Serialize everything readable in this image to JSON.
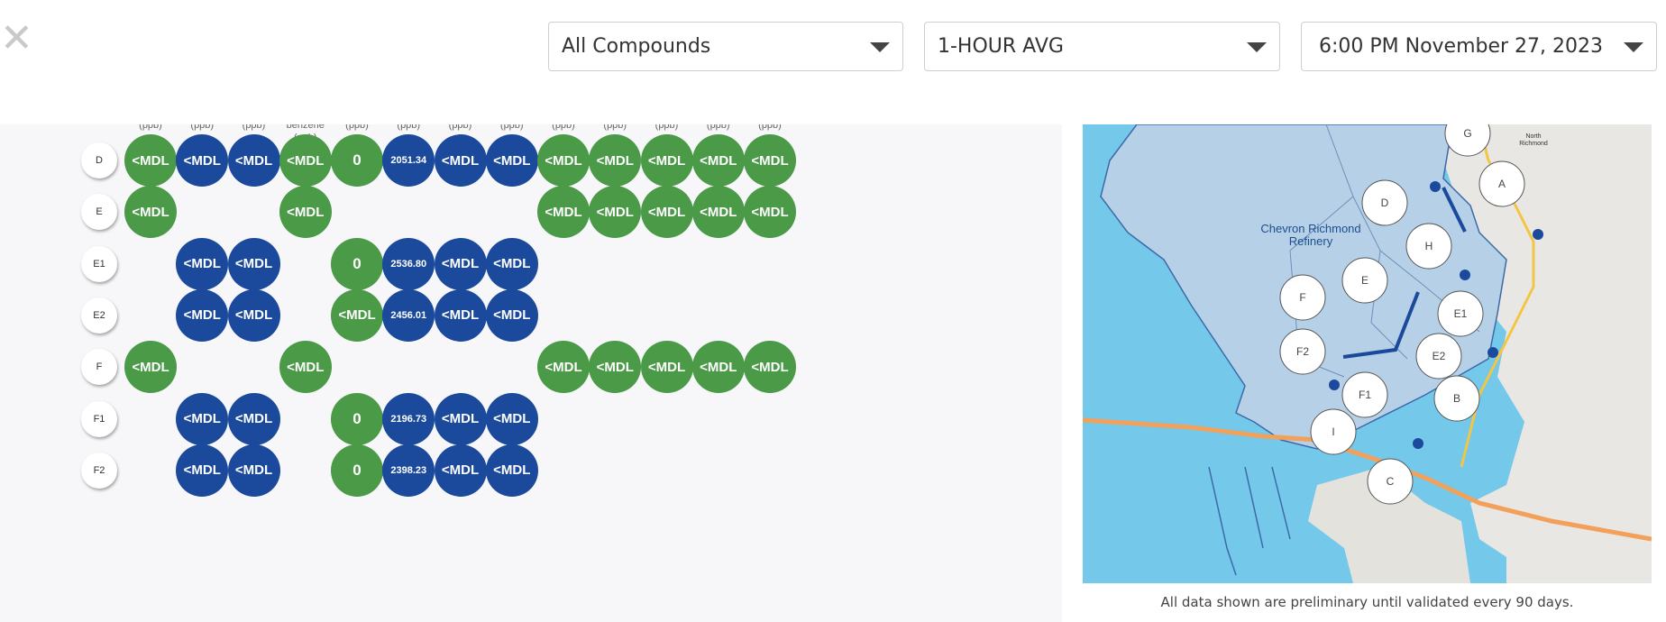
{
  "close_glyph": "✕",
  "filters": {
    "compounds": "All Compounds",
    "averaging": "1-HOUR AVG",
    "datetime": "6:00 PM November 27, 2023"
  },
  "table": {
    "column_headers": [
      "(ppb)",
      "(ppb)",
      "(ppb)",
      "benzene\n(ppb)",
      "(ppb)",
      "(ppb)",
      "(ppb)",
      "(ppb)",
      "(ppb)",
      "(ppb)",
      "(ppb)",
      "(ppb)",
      "(ppb)"
    ],
    "rows": [
      {
        "label": "D",
        "cells": [
          {
            "col": 0,
            "value": "<MDL",
            "color": "green"
          },
          {
            "col": 1,
            "value": "<MDL",
            "color": "blue"
          },
          {
            "col": 2,
            "value": "<MDL",
            "color": "blue"
          },
          {
            "col": 3,
            "value": "<MDL",
            "color": "green"
          },
          {
            "col": 4,
            "value": "0",
            "color": "green"
          },
          {
            "col": 5,
            "value": "2051.34",
            "color": "blue"
          },
          {
            "col": 6,
            "value": "<MDL",
            "color": "blue"
          },
          {
            "col": 7,
            "value": "<MDL",
            "color": "blue"
          },
          {
            "col": 8,
            "value": "<MDL",
            "color": "green"
          },
          {
            "col": 9,
            "value": "<MDL",
            "color": "green"
          },
          {
            "col": 10,
            "value": "<MDL",
            "color": "green"
          },
          {
            "col": 11,
            "value": "<MDL",
            "color": "green"
          },
          {
            "col": 12,
            "value": "<MDL",
            "color": "green"
          }
        ]
      },
      {
        "label": "E",
        "cells": [
          {
            "col": 0,
            "value": "<MDL",
            "color": "green"
          },
          {
            "col": 3,
            "value": "<MDL",
            "color": "green"
          },
          {
            "col": 8,
            "value": "<MDL",
            "color": "green"
          },
          {
            "col": 9,
            "value": "<MDL",
            "color": "green"
          },
          {
            "col": 10,
            "value": "<MDL",
            "color": "green"
          },
          {
            "col": 11,
            "value": "<MDL",
            "color": "green"
          },
          {
            "col": 12,
            "value": "<MDL",
            "color": "green"
          }
        ]
      },
      {
        "label": "E1",
        "cells": [
          {
            "col": 1,
            "value": "<MDL",
            "color": "blue"
          },
          {
            "col": 2,
            "value": "<MDL",
            "color": "blue"
          },
          {
            "col": 4,
            "value": "0",
            "color": "green"
          },
          {
            "col": 5,
            "value": "2536.80",
            "color": "blue"
          },
          {
            "col": 6,
            "value": "<MDL",
            "color": "blue"
          },
          {
            "col": 7,
            "value": "<MDL",
            "color": "blue"
          }
        ]
      },
      {
        "label": "E2",
        "cells": [
          {
            "col": 1,
            "value": "<MDL",
            "color": "blue"
          },
          {
            "col": 2,
            "value": "<MDL",
            "color": "blue"
          },
          {
            "col": 4,
            "value": "<MDL",
            "color": "green"
          },
          {
            "col": 5,
            "value": "2456.01",
            "color": "blue"
          },
          {
            "col": 6,
            "value": "<MDL",
            "color": "blue"
          },
          {
            "col": 7,
            "value": "<MDL",
            "color": "blue"
          }
        ]
      },
      {
        "label": "F",
        "cells": [
          {
            "col": 0,
            "value": "<MDL",
            "color": "green"
          },
          {
            "col": 3,
            "value": "<MDL",
            "color": "green"
          },
          {
            "col": 8,
            "value": "<MDL",
            "color": "green"
          },
          {
            "col": 9,
            "value": "<MDL",
            "color": "green"
          },
          {
            "col": 10,
            "value": "<MDL",
            "color": "green"
          },
          {
            "col": 11,
            "value": "<MDL",
            "color": "green"
          },
          {
            "col": 12,
            "value": "<MDL",
            "color": "green"
          }
        ]
      },
      {
        "label": "F1",
        "cells": [
          {
            "col": 1,
            "value": "<MDL",
            "color": "blue"
          },
          {
            "col": 2,
            "value": "<MDL",
            "color": "blue"
          },
          {
            "col": 4,
            "value": "0",
            "color": "green"
          },
          {
            "col": 5,
            "value": "2196.73",
            "color": "blue"
          },
          {
            "col": 6,
            "value": "<MDL",
            "color": "blue"
          },
          {
            "col": 7,
            "value": "<MDL",
            "color": "blue"
          }
        ]
      },
      {
        "label": "F2",
        "cells": [
          {
            "col": 1,
            "value": "<MDL",
            "color": "blue"
          },
          {
            "col": 2,
            "value": "<MDL",
            "color": "blue"
          },
          {
            "col": 4,
            "value": "0",
            "color": "green"
          },
          {
            "col": 5,
            "value": "2398.23",
            "color": "blue"
          },
          {
            "col": 6,
            "value": "<MDL",
            "color": "blue"
          },
          {
            "col": 7,
            "value": "<MDL",
            "color": "blue"
          }
        ]
      }
    ]
  },
  "colors": {
    "green": "#4a9a48",
    "blue": "#1b4a9c"
  },
  "map": {
    "refinery_label": "Chevron Richmond\nRefinery",
    "town_label": "North\nRichmond",
    "stations": [
      "G",
      "A",
      "D",
      "H",
      "E",
      "F",
      "E1",
      "F2",
      "E2",
      "F1",
      "B",
      "I",
      "C"
    ]
  },
  "disclaimer": "All data shown are preliminary until validated every 90 days."
}
